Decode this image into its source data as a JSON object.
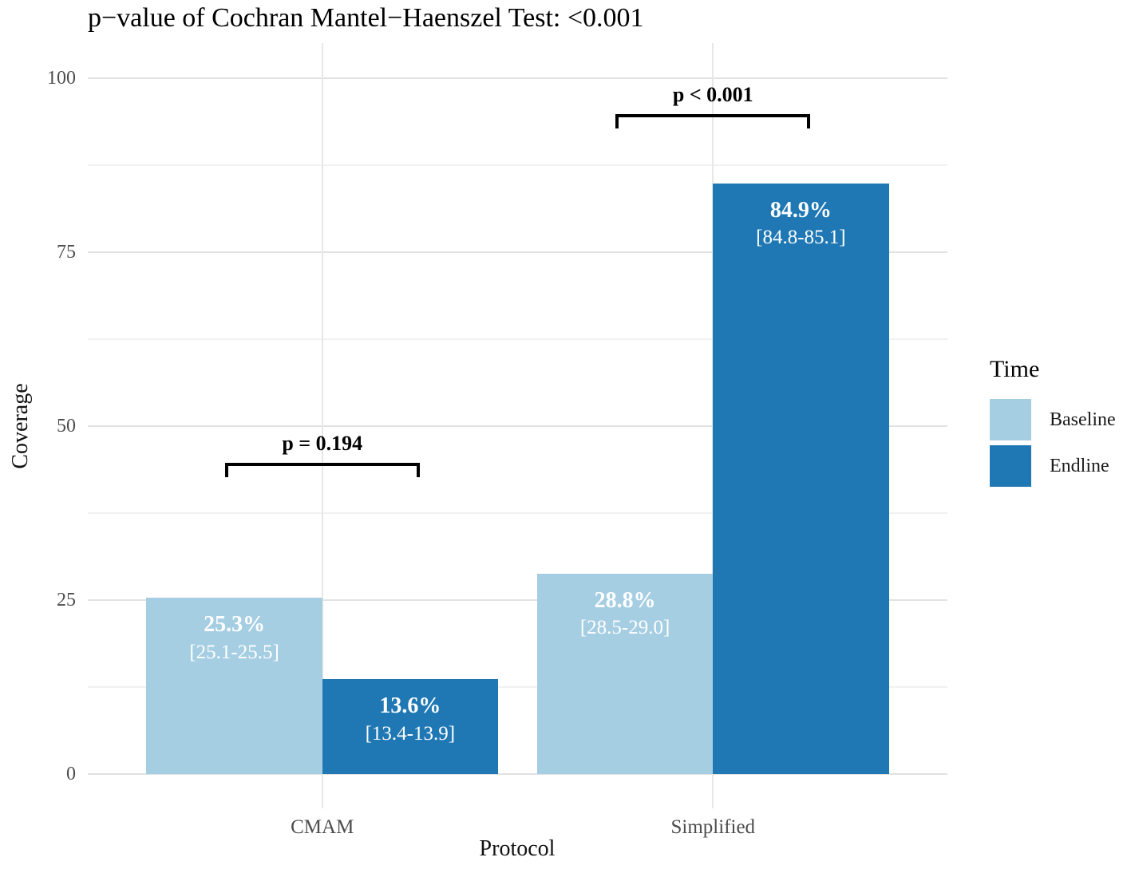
{
  "chart_data": {
    "type": "bar",
    "title": "p−value of Cochran Mantel−Haenszel Test: <0.001",
    "xlabel": "Protocol",
    "ylabel": "Coverage",
    "categories": [
      "CMAM",
      "Simplified"
    ],
    "series": [
      {
        "name": "Baseline",
        "color": "#A6CEE3",
        "values": [
          25.3,
          28.8
        ],
        "value_labels": [
          "25.3%",
          "28.8%"
        ],
        "ci_labels": [
          "[25.1-25.5]",
          "[28.5-29.0]"
        ]
      },
      {
        "name": "Endline",
        "color": "#1F78B4",
        "values": [
          13.6,
          84.9
        ],
        "value_labels": [
          "13.6%",
          "84.9%"
        ],
        "ci_labels": [
          "[13.4-13.9]",
          "[84.8-85.1]"
        ]
      }
    ],
    "ylim": [
      0,
      100
    ],
    "yticks": [
      0,
      25,
      50,
      75,
      100
    ],
    "y_minor_ticks": [
      12.5,
      37.5,
      62.5,
      87.5
    ],
    "grid": "on",
    "legend": {
      "title": "Time",
      "position": "right",
      "entries": [
        "Baseline",
        "Endline"
      ]
    },
    "annotations": [
      {
        "category": "CMAM",
        "label": "p = 0.194",
        "y": 44.7
      },
      {
        "category": "Simplified",
        "label": "p < 0.001",
        "y": 94.8
      }
    ]
  }
}
